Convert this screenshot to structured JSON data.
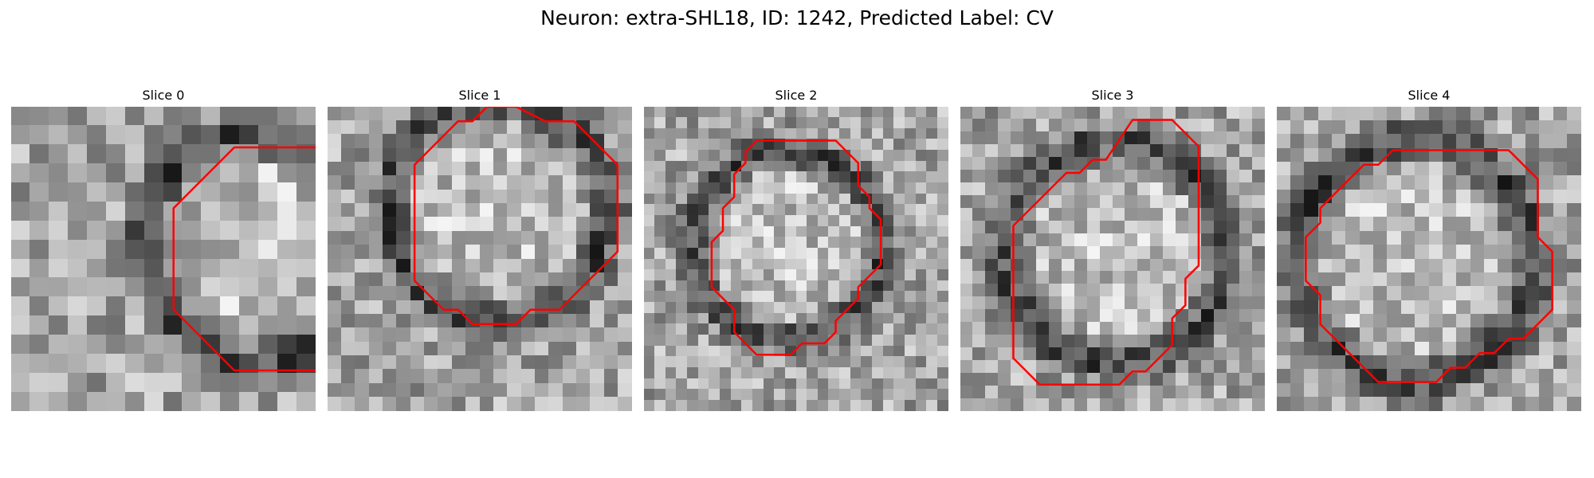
{
  "figure": {
    "title": "Neuron: extra-SHL18, ID: 1242, Predicted Label: CV"
  },
  "contour_color": "#ff0000",
  "slices": [
    {
      "title": "Slice 0",
      "seed": 11,
      "contour": [
        [
          11,
          2
        ],
        [
          15,
          2
        ],
        [
          18,
          5
        ],
        [
          18,
          10
        ],
        [
          15,
          13
        ],
        [
          11,
          13
        ],
        [
          8,
          10
        ],
        [
          8,
          5
        ]
      ]
    },
    {
      "title": "Slice 1",
      "seed": 23,
      "contour": [
        [
          11,
          0
        ],
        [
          13,
          0
        ],
        [
          15,
          1
        ],
        [
          17,
          1
        ],
        [
          20,
          4
        ],
        [
          20,
          10
        ],
        [
          16,
          14
        ],
        [
          14,
          14
        ],
        [
          13,
          15
        ],
        [
          10,
          15
        ],
        [
          9,
          14
        ],
        [
          8,
          14
        ],
        [
          6,
          12
        ],
        [
          6,
          4
        ],
        [
          9,
          1
        ],
        [
          10,
          1
        ]
      ]
    },
    {
      "title": "Slice 2",
      "seed": 37,
      "contour": [
        [
          10,
          3
        ],
        [
          17,
          3
        ],
        [
          19,
          5
        ],
        [
          19,
          7
        ],
        [
          20,
          8
        ],
        [
          20,
          9
        ],
        [
          21,
          10
        ],
        [
          21,
          14
        ],
        [
          19,
          16
        ],
        [
          19,
          17
        ],
        [
          17,
          19
        ],
        [
          17,
          20
        ],
        [
          16,
          21
        ],
        [
          14,
          21
        ],
        [
          13,
          22
        ],
        [
          10,
          22
        ],
        [
          8,
          20
        ],
        [
          8,
          18
        ],
        [
          7,
          17
        ],
        [
          6,
          16
        ],
        [
          6,
          12
        ],
        [
          7,
          11
        ],
        [
          7,
          9
        ],
        [
          8,
          8
        ],
        [
          8,
          6
        ],
        [
          9,
          5
        ],
        [
          9,
          4
        ]
      ]
    },
    {
      "title": "Slice 4",
      "seed": 59,
      "contour": [
        [
          8,
          3
        ],
        [
          16,
          3
        ],
        [
          18,
          5
        ],
        [
          18,
          9
        ],
        [
          19,
          10
        ],
        [
          19,
          14
        ],
        [
          17,
          16
        ],
        [
          16,
          16
        ],
        [
          15,
          17
        ],
        [
          14,
          17
        ],
        [
          13,
          18
        ],
        [
          12,
          18
        ],
        [
          11,
          19
        ],
        [
          7,
          19
        ],
        [
          3,
          15
        ],
        [
          3,
          13
        ],
        [
          2,
          12
        ],
        [
          2,
          9
        ],
        [
          3,
          8
        ],
        [
          3,
          7
        ],
        [
          4,
          6
        ],
        [
          5,
          5
        ],
        [
          6,
          4
        ],
        [
          7,
          4
        ]
      ]
    },
    {
      "title": "Slice 3",
      "seed": 47,
      "contour": [
        [
          13,
          1
        ],
        [
          16,
          1
        ],
        [
          18,
          3
        ],
        [
          18,
          12
        ],
        [
          17,
          13
        ],
        [
          17,
          15
        ],
        [
          16,
          16
        ],
        [
          16,
          18
        ],
        [
          14,
          20
        ],
        [
          13,
          20
        ],
        [
          12,
          21
        ],
        [
          6,
          21
        ],
        [
          4,
          19
        ],
        [
          4,
          9
        ],
        [
          8,
          5
        ],
        [
          9,
          5
        ],
        [
          10,
          4
        ],
        [
          11,
          4
        ]
      ]
    }
  ]
}
